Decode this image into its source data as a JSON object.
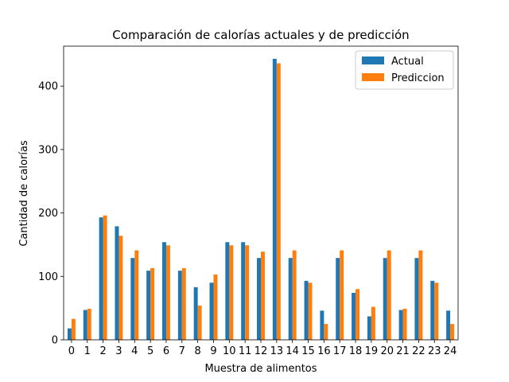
{
  "chart_data": {
    "type": "bar",
    "title": "Comparación de calorías actuales y de predicción",
    "xlabel": "Muestra de alimentos",
    "ylabel": "Cantidad de calorías",
    "categories": [
      "0",
      "1",
      "2",
      "3",
      "4",
      "5",
      "6",
      "7",
      "8",
      "9",
      "10",
      "11",
      "12",
      "13",
      "14",
      "15",
      "16",
      "17",
      "18",
      "19",
      "20",
      "21",
      "22",
      "23",
      "24"
    ],
    "ylim": [
      0,
      463
    ],
    "yticks": [
      0,
      100,
      200,
      300,
      400
    ],
    "grid": false,
    "legend": "top-right",
    "series": [
      {
        "name": "Actual",
        "color": "#1f77b4",
        "values": [
          18,
          47,
          193,
          179,
          129,
          109,
          154,
          109,
          83,
          90,
          154,
          154,
          129,
          443,
          129,
          93,
          46,
          129,
          74,
          37,
          129,
          47,
          129,
          93,
          46
        ]
      },
      {
        "name": "Prediccion",
        "color": "#ff7f0e",
        "values": [
          33,
          49,
          196,
          164,
          141,
          113,
          149,
          113,
          54,
          103,
          149,
          149,
          139,
          436,
          141,
          90,
          25,
          141,
          80,
          52,
          141,
          49,
          141,
          90,
          25
        ]
      }
    ]
  }
}
